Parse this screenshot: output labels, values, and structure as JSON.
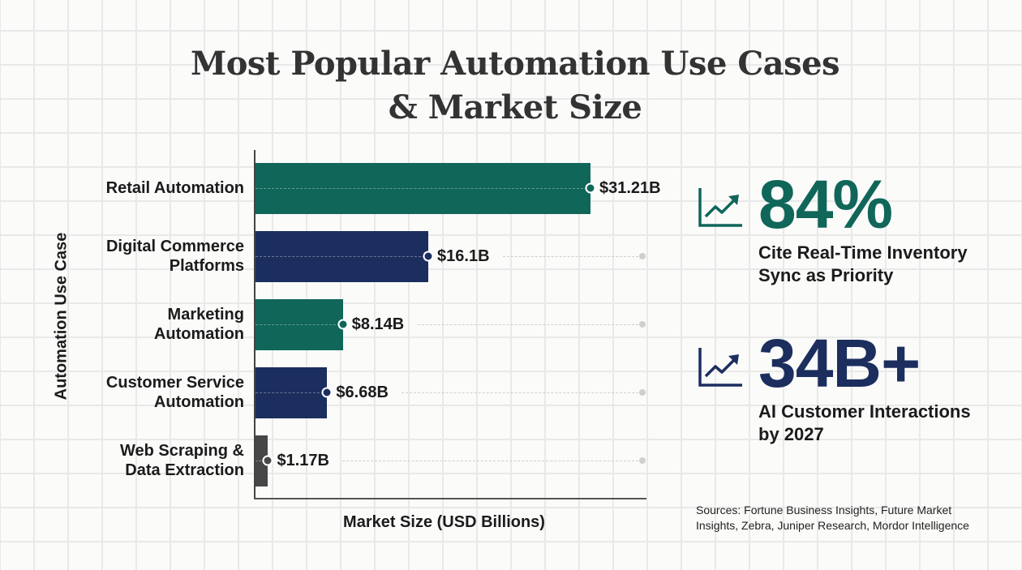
{
  "title": "Most Popular Automation Use Cases & Market Size",
  "chart_data": {
    "type": "bar",
    "orientation": "horizontal",
    "title": "Most Popular Automation Use Cases & Market Size",
    "xlabel": "Market Size (USD Billions)",
    "ylabel": "Automation Use Case",
    "categories": [
      "Retail Automation",
      "Digital Commerce Platforms",
      "Marketing Automation",
      "Customer Service Automation",
      "Web Scraping & Data Extraction"
    ],
    "values": [
      31.21,
      16.1,
      8.14,
      6.68,
      1.17
    ],
    "value_labels": [
      "$31.21B",
      "$16.1B",
      "$8.14B",
      "$6.68B",
      "$1.17B"
    ],
    "colors": [
      "#0f6659",
      "#1b2e5e",
      "#0f6659",
      "#1b2e5e",
      "#474747"
    ],
    "xlim": [
      0,
      36
    ],
    "grid": false,
    "legend": null
  },
  "categories_display": [
    {
      "line1": "Retail Automation",
      "line2": ""
    },
    {
      "line1": "Digital Commerce",
      "line2": "Platforms"
    },
    {
      "line1": "Marketing",
      "line2": "Automation"
    },
    {
      "line1": "Customer Service",
      "line2": "Automation"
    },
    {
      "line1": "Web Scraping &",
      "line2": "Data Extraction"
    }
  ],
  "stats": [
    {
      "value": "84%",
      "caption_line1": "Cite Real-Time Inventory",
      "caption_line2": "Sync as Priority",
      "color": "#0f6659",
      "icon": "trending-up-chart-icon"
    },
    {
      "value": "34B+",
      "caption_line1": "AI Customer Interactions",
      "caption_line2": "by 2027",
      "color": "#1b2e5e",
      "icon": "trending-up-chart-icon"
    }
  ],
  "sources_line1": "Sources: Fortune Business Insights, Future Market",
  "sources_line2": "Insights, Zebra, Juniper Research, Mordor Intelligence"
}
